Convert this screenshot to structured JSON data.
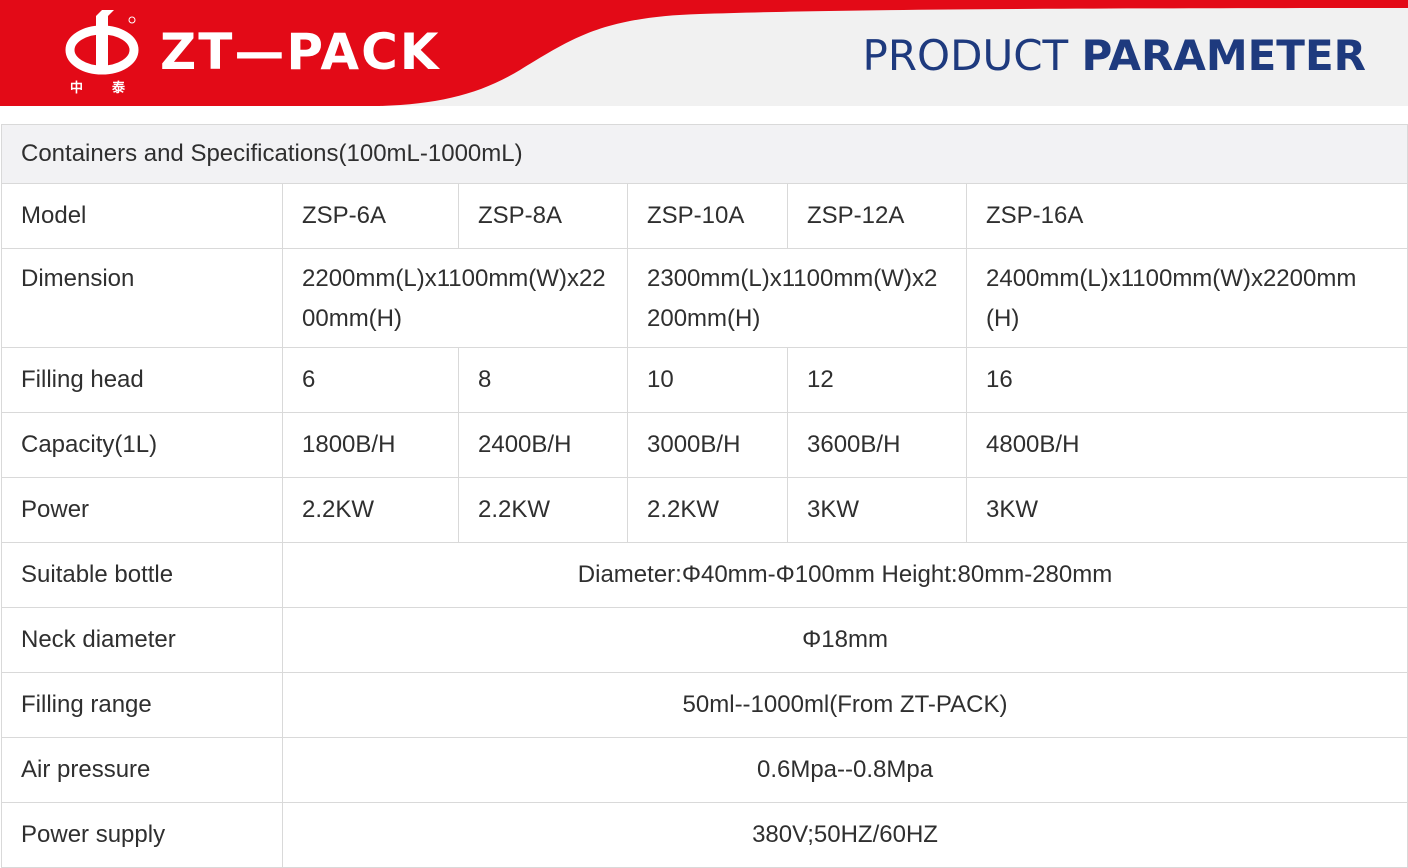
{
  "header": {
    "brand": "ZT—PACK",
    "logo_chars": [
      "中",
      "泰"
    ],
    "title_light": "PRODUCT",
    "title_bold": "PARAMETER",
    "colors": {
      "red": "#e30a17",
      "navy": "#1e3a7e",
      "banner_bg": "#f1f1f1"
    }
  },
  "table": {
    "title": "Containers and Specifications(100mL-1000mL)",
    "model_row": {
      "label": "Model",
      "values": [
        "ZSP-6A",
        "ZSP-8A",
        "ZSP-10A",
        "ZSP-12A",
        "ZSP-16A"
      ]
    },
    "dimension_row": {
      "label": "Dimension",
      "values": [
        "2200mm(L)x1100mm(W)x2200mm(H)",
        "2300mm(L)x1100mm(W)x2200mm(H)",
        "2400mm(L)x1100mm(W)x2200mm(H)"
      ]
    },
    "filling_head_row": {
      "label": "Filling head",
      "values": [
        "6",
        "8",
        "10",
        "12",
        "16"
      ]
    },
    "capacity_row": {
      "label": "Capacity(1L)",
      "values": [
        "1800B/H",
        "2400B/H",
        "3000B/H",
        "3600B/H",
        "4800B/H"
      ]
    },
    "power_row": {
      "label": "Power",
      "values": [
        "2.2KW",
        "2.2KW",
        "2.2KW",
        "3KW",
        "3KW"
      ]
    },
    "suitable_bottle": {
      "label": "Suitable bottle",
      "value": "Diameter:Φ40mm-Φ100mm Height:80mm-280mm"
    },
    "neck_diameter": {
      "label": "Neck diameter",
      "value": "Φ18mm"
    },
    "filling_range": {
      "label": "Filling range",
      "value": "50ml--1000ml(From ZT-PACK)"
    },
    "air_pressure": {
      "label": "Air pressure",
      "value": "0.6Mpa--0.8Mpa"
    },
    "power_supply": {
      "label": "Power supply",
      "value": "380V;50HZ/60HZ"
    }
  }
}
